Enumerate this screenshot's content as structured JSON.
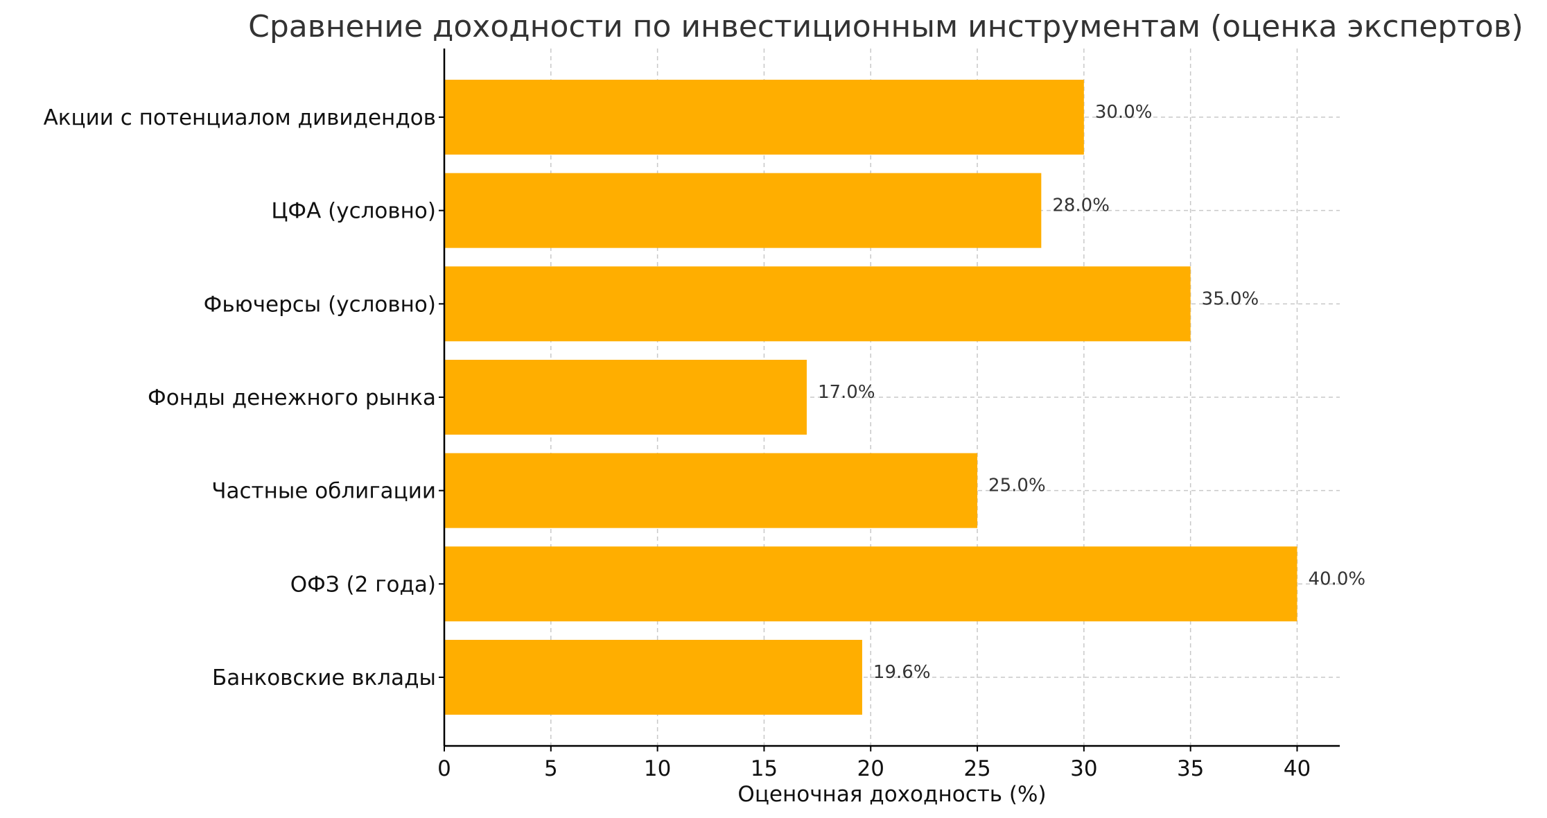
{
  "chart_data": {
    "type": "bar",
    "orientation": "horizontal",
    "title": "Сравнение доходности по инвестиционным инструментам (оценка экспертов)",
    "xlabel": "Оценочная доходность (%)",
    "ylabel": "",
    "categories": [
      "Акции с потенциалом дивидендов",
      "ЦФА (условно)",
      "Фьючерсы (условно)",
      "Фонды денежного рынка",
      "Частные облигации",
      "ОФЗ (2 года)",
      "Банковские вклады"
    ],
    "values": [
      30.0,
      28.0,
      35.0,
      17.0,
      25.0,
      40.0,
      19.6
    ],
    "value_labels": [
      "30.0%",
      "28.0%",
      "35.0%",
      "17.0%",
      "25.0%",
      "40.0%",
      "19.6%"
    ],
    "xlim": [
      0,
      42
    ],
    "xticks": [
      0,
      5,
      10,
      15,
      20,
      25,
      30,
      35,
      40
    ],
    "xtick_labels": [
      "0",
      "5",
      "10",
      "15",
      "20",
      "25",
      "30",
      "35",
      "40"
    ],
    "grid": true,
    "bar_color": "#FFAE00"
  }
}
